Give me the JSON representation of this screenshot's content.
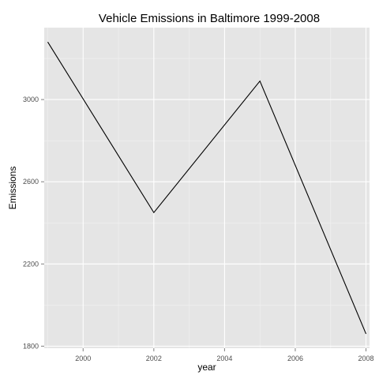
{
  "chart_data": {
    "type": "line",
    "title": "Vehicle Emissions in Baltimore 1999-2008",
    "xlabel": "year",
    "ylabel": "Emissions",
    "x": [
      1999,
      2002,
      2005,
      2008
    ],
    "series": [
      {
        "values": [
          3280,
          2450,
          3090,
          1860
        ]
      }
    ],
    "xlim": [
      1998.9,
      2008.1
    ],
    "ylim": [
      1790,
      3350
    ],
    "x_ticks": [
      2000,
      2002,
      2004,
      2006,
      2008
    ],
    "x_tick_labels": [
      "2000",
      "2002",
      "2004",
      "2006",
      "2008"
    ],
    "y_ticks": [
      1800,
      2200,
      2600,
      3000
    ],
    "y_tick_labels": [
      "1800",
      "2200",
      "2600",
      "3000"
    ],
    "grid": true,
    "legend": "none",
    "colors": {
      "panel_background": "#e5e5e5",
      "major_grid": "#ffffff",
      "minor_grid": "#f2f2f2",
      "line": "#000000",
      "tick_text": "#4d4d4d"
    }
  }
}
